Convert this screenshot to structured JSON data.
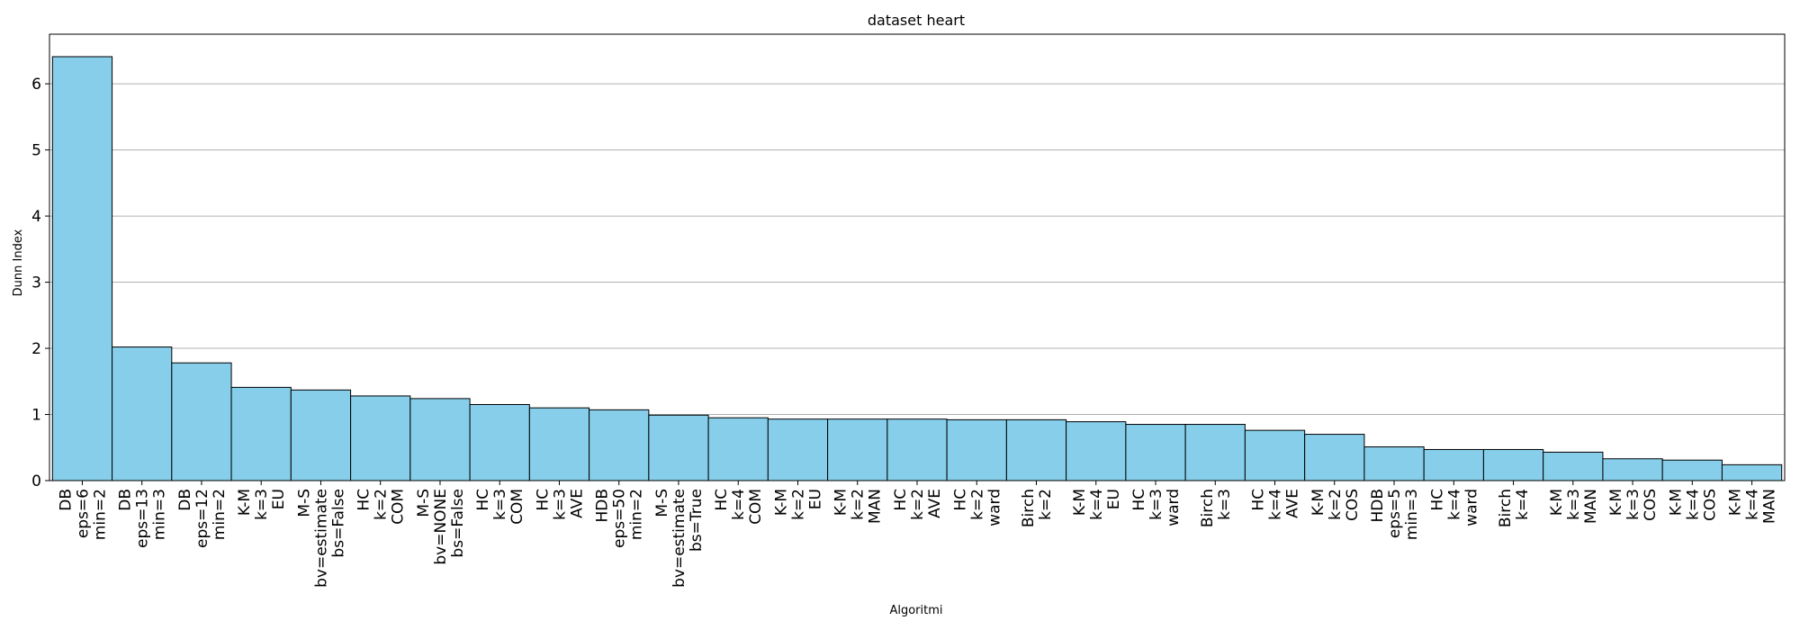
{
  "chart_data": {
    "type": "bar",
    "title": "dataset heart",
    "xlabel": "Algoritmi",
    "ylabel": "Dunn Index",
    "ylim": [
      0,
      6.75
    ],
    "yticks": [
      0,
      1,
      2,
      3,
      4,
      5,
      6
    ],
    "grid": "y",
    "bar_color": "#87CEEB",
    "edge_color": "#000000",
    "categories": [
      [
        "DB",
        "eps=6",
        "min=2"
      ],
      [
        "DB",
        "eps=13",
        "min=3"
      ],
      [
        "DB",
        "eps=12",
        "min=2"
      ],
      [
        "K-M",
        "k=3",
        "EU"
      ],
      [
        "M-S",
        "bv=estimate",
        "bs=False"
      ],
      [
        "HC",
        "k=2",
        "COM"
      ],
      [
        "M-S",
        "bv=NONE",
        "bs=False"
      ],
      [
        "HC",
        "k=3",
        "COM"
      ],
      [
        "HC",
        "k=3",
        "AVE"
      ],
      [
        "HDB",
        "eps=50",
        "min=2"
      ],
      [
        "M-S",
        "bv=estimate",
        "bs=True"
      ],
      [
        "HC",
        "k=4",
        "COM"
      ],
      [
        "K-M",
        "k=2",
        "EU"
      ],
      [
        "K-M",
        "k=2",
        "MAN"
      ],
      [
        "HC",
        "k=2",
        "AVE"
      ],
      [
        "HC",
        "k=2",
        "ward"
      ],
      [
        "Birch",
        "k=2"
      ],
      [
        "K-M",
        "k=4",
        "EU"
      ],
      [
        "HC",
        "k=3",
        "ward"
      ],
      [
        "Birch",
        "k=3"
      ],
      [
        "HC",
        "k=4",
        "AVE"
      ],
      [
        "K-M",
        "k=2",
        "COS"
      ],
      [
        "HDB",
        "eps=5",
        "min=3"
      ],
      [
        "HC",
        "k=4",
        "ward"
      ],
      [
        "Birch",
        "k=4"
      ],
      [
        "K-M",
        "k=3",
        "MAN"
      ],
      [
        "K-M",
        "k=3",
        "COS"
      ],
      [
        "K-M",
        "k=4",
        "COS"
      ],
      [
        "K-M",
        "k=4",
        "MAN"
      ]
    ],
    "values": [
      6.41,
      2.02,
      1.78,
      1.41,
      1.37,
      1.28,
      1.24,
      1.15,
      1.1,
      1.07,
      0.99,
      0.95,
      0.93,
      0.93,
      0.93,
      0.92,
      0.92,
      0.89,
      0.85,
      0.85,
      0.76,
      0.7,
      0.51,
      0.47,
      0.47,
      0.43,
      0.33,
      0.31,
      0.24
    ]
  }
}
